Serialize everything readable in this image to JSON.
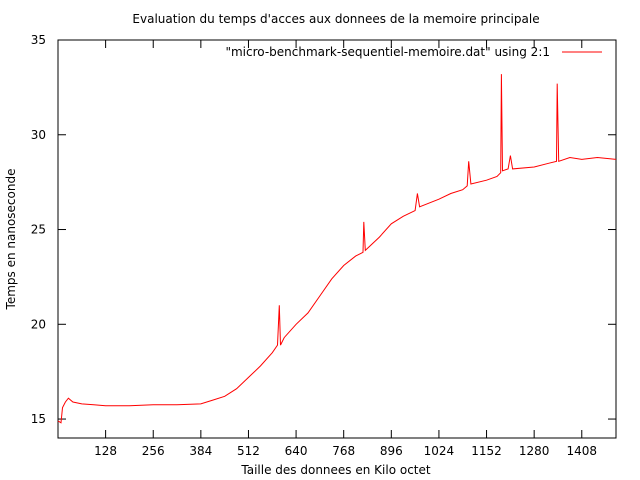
{
  "chart_data": {
    "type": "line",
    "title": "Evaluation du temps d'acces aux donnees de la memoire principale",
    "xlabel": "Taille des donnees en Kilo octet",
    "ylabel": "Temps en nanoseconde",
    "xlim": [
      0,
      1500
    ],
    "ylim": [
      14,
      35
    ],
    "xticks": [
      128,
      256,
      384,
      512,
      640,
      768,
      896,
      1024,
      1152,
      1280,
      1408
    ],
    "yticks": [
      15,
      20,
      25,
      30,
      35
    ],
    "grid": false,
    "legend_position": "top-right",
    "series": [
      {
        "name": "\"micro-benchmark-sequentiel-memoire.dat\" using 2:1",
        "color": "#ff0000",
        "points": [
          [
            0,
            14.9
          ],
          [
            8,
            14.8
          ],
          [
            12,
            15.6
          ],
          [
            20,
            15.9
          ],
          [
            28,
            16.1
          ],
          [
            40,
            15.9
          ],
          [
            64,
            15.8
          ],
          [
            96,
            15.75
          ],
          [
            128,
            15.7
          ],
          [
            192,
            15.7
          ],
          [
            256,
            15.75
          ],
          [
            320,
            15.75
          ],
          [
            384,
            15.8
          ],
          [
            416,
            16.0
          ],
          [
            448,
            16.2
          ],
          [
            480,
            16.6
          ],
          [
            512,
            17.2
          ],
          [
            544,
            17.8
          ],
          [
            576,
            18.5
          ],
          [
            590,
            18.9
          ],
          [
            595,
            21.0
          ],
          [
            598,
            18.9
          ],
          [
            608,
            19.3
          ],
          [
            640,
            20.0
          ],
          [
            672,
            20.6
          ],
          [
            704,
            21.5
          ],
          [
            736,
            22.4
          ],
          [
            768,
            23.1
          ],
          [
            800,
            23.6
          ],
          [
            820,
            23.8
          ],
          [
            822,
            25.4
          ],
          [
            826,
            23.9
          ],
          [
            864,
            24.6
          ],
          [
            896,
            25.3
          ],
          [
            928,
            25.7
          ],
          [
            960,
            26.0
          ],
          [
            966,
            26.9
          ],
          [
            972,
            26.2
          ],
          [
            1024,
            26.6
          ],
          [
            1056,
            26.9
          ],
          [
            1088,
            27.1
          ],
          [
            1100,
            27.3
          ],
          [
            1104,
            28.6
          ],
          [
            1110,
            27.4
          ],
          [
            1152,
            27.6
          ],
          [
            1180,
            27.8
          ],
          [
            1190,
            28.0
          ],
          [
            1192,
            33.2
          ],
          [
            1195,
            28.1
          ],
          [
            1210,
            28.2
          ],
          [
            1216,
            28.9
          ],
          [
            1222,
            28.2
          ],
          [
            1280,
            28.3
          ],
          [
            1320,
            28.5
          ],
          [
            1340,
            28.6
          ],
          [
            1342,
            32.7
          ],
          [
            1346,
            28.6
          ],
          [
            1376,
            28.8
          ],
          [
            1408,
            28.7
          ],
          [
            1450,
            28.8
          ],
          [
            1500,
            28.7
          ]
        ]
      }
    ]
  }
}
